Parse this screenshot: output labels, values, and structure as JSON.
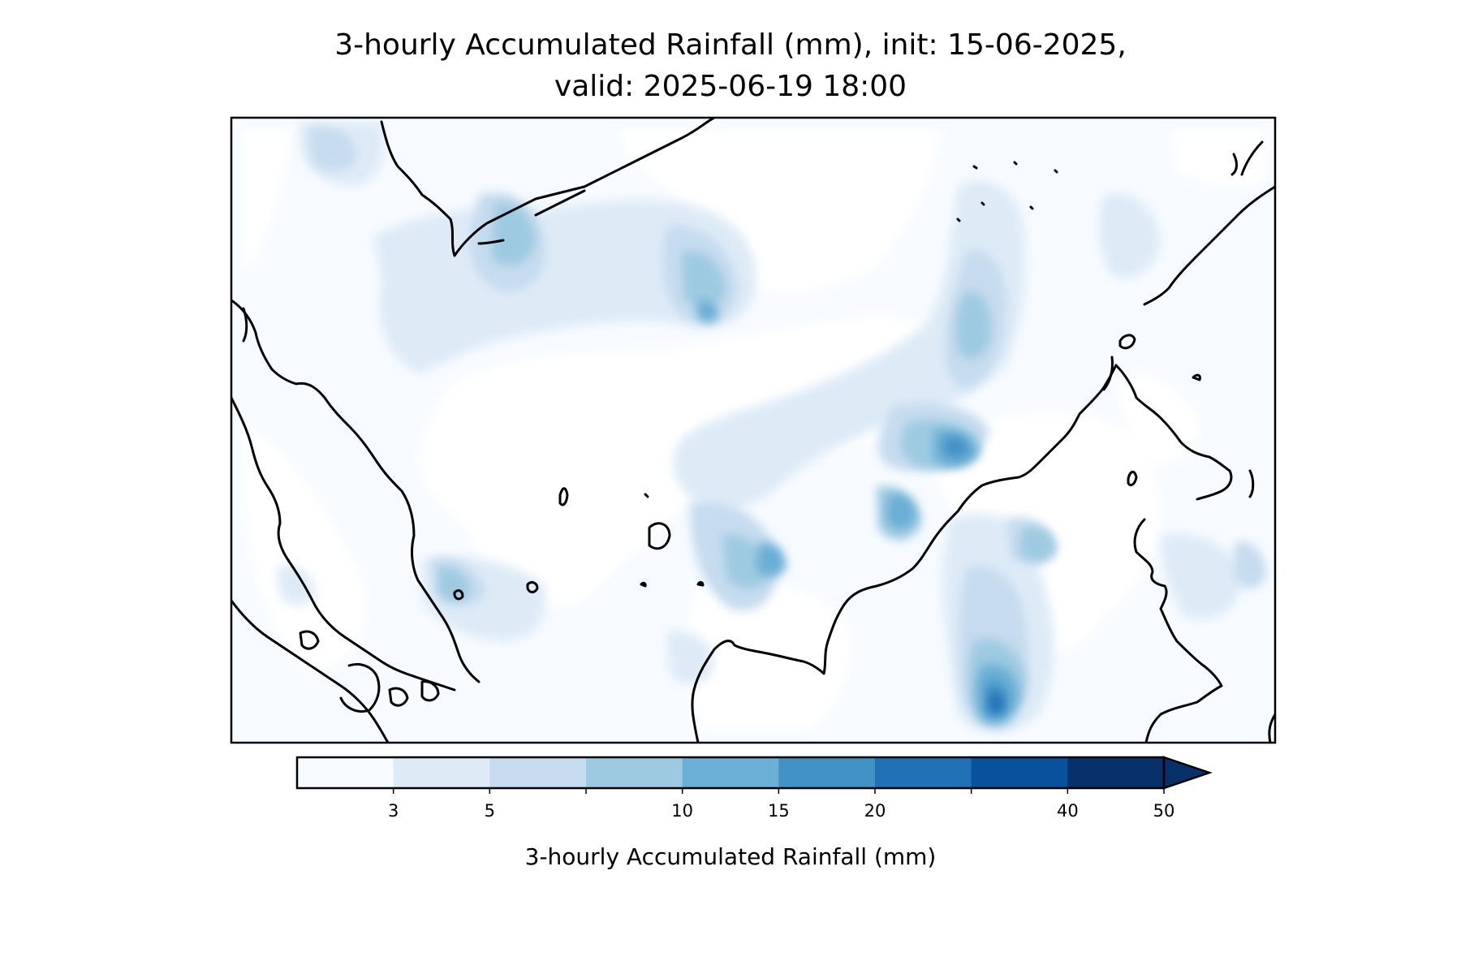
{
  "title": {
    "line1": "3-hourly Accumulated Rainfall (mm), init: 15-06-2025,",
    "line2": "valid: 2025-06-19 18:00"
  },
  "colorbar": {
    "label": "3-hourly Accumulated Rainfall (mm)",
    "levels": [
      1,
      3,
      5,
      7,
      10,
      15,
      20,
      30,
      40,
      50
    ],
    "colors": [
      "#f7fbff",
      "#deebf7",
      "#c6dbef",
      "#9ecae1",
      "#6baed6",
      "#4292c6",
      "#2171b5",
      "#08519c",
      "#08306b"
    ],
    "extend": "max",
    "tick_labels": [
      {
        "level": 3,
        "text": "3"
      },
      {
        "level": 5,
        "text": "5"
      },
      {
        "level": 10,
        "text": "10"
      },
      {
        "level": 15,
        "text": "15"
      },
      {
        "level": 20,
        "text": "20"
      },
      {
        "level": 40,
        "text": "40"
      },
      {
        "level": 50,
        "text": "50"
      }
    ]
  },
  "map": {
    "variable": "3-hourly accumulated rainfall",
    "units": "mm",
    "coastlines": true,
    "colormap": "Blues"
  }
}
